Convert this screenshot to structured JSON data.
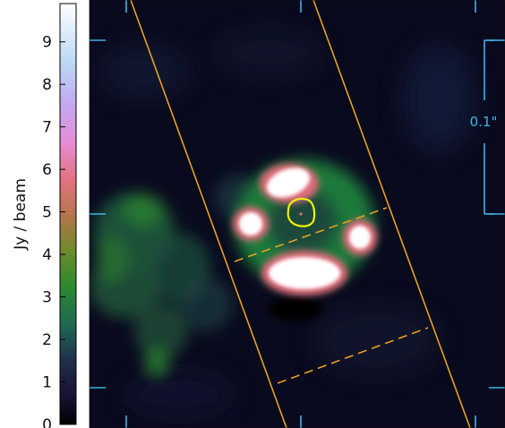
{
  "colorbar": {
    "label": "Jy / beam",
    "ticks": [
      "0",
      "1",
      "2",
      "3",
      "4",
      "5",
      "6",
      "7",
      "8",
      "9"
    ],
    "range": [
      0,
      9.9
    ]
  },
  "scalebar": {
    "label": "0.1\""
  },
  "colors": {
    "background": "#0a0a1e",
    "tick_marks": "#3fb5e6",
    "slit_lines": "#e8a020",
    "contour": "#f2f20a",
    "scalebar": "#3fb5e6"
  }
}
